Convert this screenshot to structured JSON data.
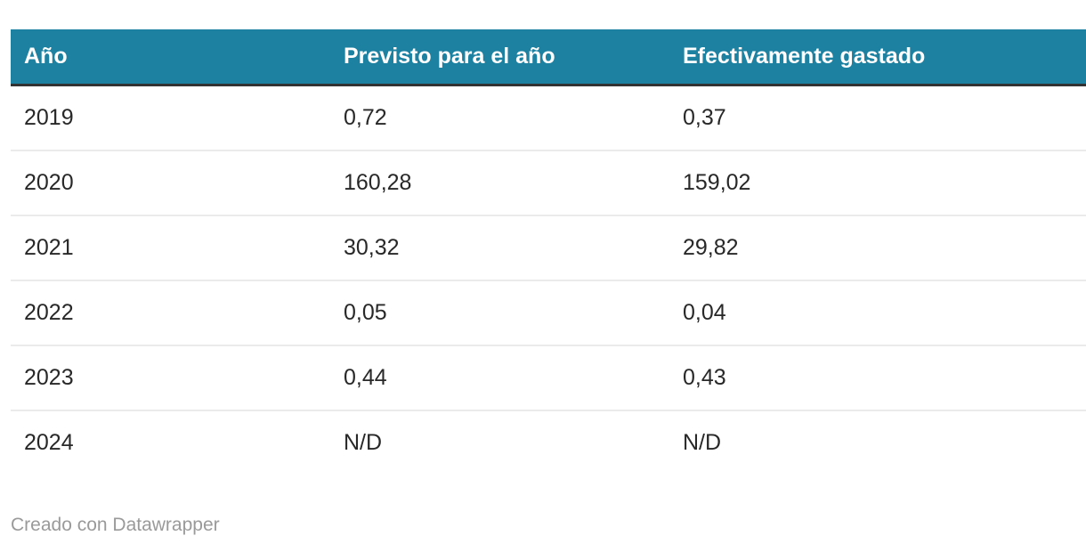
{
  "chart_data": {
    "type": "table",
    "columns": [
      "Año",
      "Previsto para el año",
      "Efectivamente gastado"
    ],
    "rows": [
      [
        "2019",
        "0,72",
        "0,37"
      ],
      [
        "2020",
        "160,28",
        "159,02"
      ],
      [
        "2021",
        "30,32",
        "29,82"
      ],
      [
        "2022",
        "0,05",
        "0,04"
      ],
      [
        "2023",
        "0,44",
        "0,43"
      ],
      [
        "2024",
        "N/D",
        "N/D"
      ]
    ],
    "layout": {
      "header_position": "top",
      "gridlines": "horizontal-only",
      "decimal_separator": ","
    }
  },
  "footer": {
    "attribution": "Creado con Datawrapper"
  },
  "colors": {
    "header_bg": "#1d81a2",
    "header_text": "#ffffff",
    "header_bottom_border": "#333333",
    "row_divider": "#ebebeb",
    "body_text": "#282828",
    "footer_text": "#9a9a9a",
    "background": "#ffffff"
  }
}
